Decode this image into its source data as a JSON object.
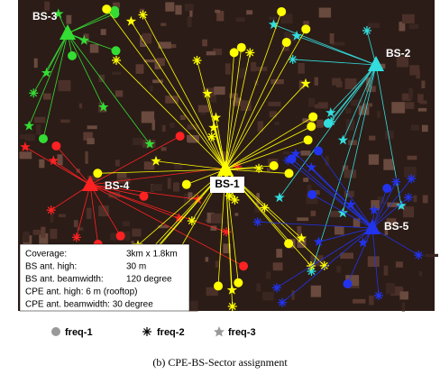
{
  "map": {
    "base_stations": [
      "BS-3",
      "BS-2",
      "BS-4",
      "BS-1",
      "BS-5"
    ]
  },
  "info": [
    {
      "label": "Coverage:",
      "value": "3km x 1.8km"
    },
    {
      "label": "BS ant. high:",
      "value": "30 m"
    },
    {
      "label": "BS ant. beamwidth:",
      "value": "120 degree"
    },
    {
      "label": "CPE ant. high: 6 m (rooftop)"
    },
    {
      "label": "CPE ant. beamwidth: 30 degree"
    }
  ],
  "legend": [
    "freq-1",
    "freq-2",
    "freq-3"
  ],
  "caption": "(b) CPE-BS-Sector assignment"
}
